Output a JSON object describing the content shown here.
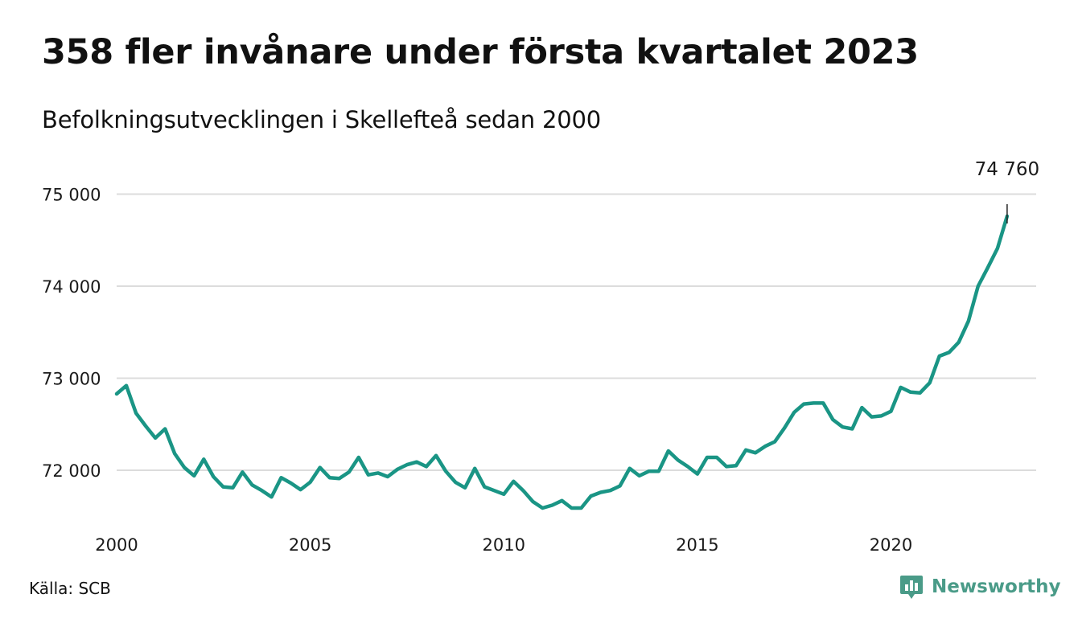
{
  "title": "358 fler invånare under första kvartalet 2023",
  "subtitle": "Befolkningsutvecklingen i Skellefteå sedan 2000",
  "source": "Källa: SCB",
  "brand": {
    "name": "Newsworthy",
    "icon": "newsworthy-bar-chart-logo-icon"
  },
  "colors": {
    "line": "#1a9585",
    "grid": "#dcdcdc",
    "brand": "#4a9b88",
    "text": "#111111"
  },
  "chart_data": {
    "type": "line",
    "title": "358 fler invånare under första kvartalet 2023",
    "subtitle": "Befolkningsutvecklingen i Skellefteå sedan 2000",
    "xlabel": "",
    "ylabel": "",
    "xlim": [
      2000,
      2023.75
    ],
    "ylim": [
      71450,
      75100
    ],
    "x_ticks": [
      2000,
      2005,
      2010,
      2015,
      2020
    ],
    "x_tick_labels": [
      "2000",
      "2005",
      "2010",
      "2015",
      "2020"
    ],
    "y_ticks": [
      72000,
      73000,
      74000,
      75000
    ],
    "y_tick_labels": [
      "72 000",
      "73 000",
      "74 000",
      "75 000"
    ],
    "grid": "horizontal",
    "legend": "none",
    "end_label": "74 760",
    "series": [
      {
        "x": [
          2000.0,
          2000.25,
          2000.5,
          2000.75,
          2001.0,
          2001.25,
          2001.5,
          2001.75,
          2002.0,
          2002.25,
          2002.5,
          2002.75,
          2003.0,
          2003.25,
          2003.5,
          2003.75,
          2004.0,
          2004.25,
          2004.5,
          2004.75,
          2005.0,
          2005.25,
          2005.5,
          2005.75,
          2006.0,
          2006.25,
          2006.5,
          2006.75,
          2007.0,
          2007.25,
          2007.5,
          2007.75,
          2008.0,
          2008.25,
          2008.5,
          2008.75,
          2009.0,
          2009.25,
          2009.5,
          2009.75,
          2010.0,
          2010.25,
          2010.5,
          2010.75,
          2011.0,
          2011.25,
          2011.5,
          2011.75,
          2012.0,
          2012.25,
          2012.5,
          2012.75,
          2013.0,
          2013.25,
          2013.5,
          2013.75,
          2014.0,
          2014.25,
          2014.5,
          2014.75,
          2015.0,
          2015.25,
          2015.5,
          2015.75,
          2016.0,
          2016.25,
          2016.5,
          2016.75,
          2017.0,
          2017.25,
          2017.5,
          2017.75,
          2018.0,
          2018.25,
          2018.5,
          2018.75,
          2019.0,
          2019.25,
          2019.5,
          2019.75,
          2020.0,
          2020.25,
          2020.5,
          2020.75,
          2021.0,
          2021.25,
          2021.5,
          2021.75,
          2022.0,
          2022.25,
          2022.5,
          2022.75,
          2023.0
        ],
        "y": [
          72830,
          72920,
          72620,
          72480,
          72350,
          72450,
          72180,
          72030,
          71940,
          72120,
          71930,
          71820,
          71810,
          71980,
          71840,
          71780,
          71710,
          71920,
          71860,
          71790,
          71870,
          72030,
          71920,
          71910,
          71980,
          72140,
          71950,
          71970,
          71930,
          72010,
          72060,
          72090,
          72040,
          72160,
          71990,
          71870,
          71810,
          72020,
          71820,
          71780,
          71740,
          71880,
          71780,
          71660,
          71590,
          71620,
          71670,
          71590,
          71590,
          71720,
          71760,
          71780,
          71830,
          72020,
          71940,
          71990,
          71990,
          72210,
          72110,
          72040,
          71960,
          72140,
          72140,
          72040,
          72050,
          72220,
          72190,
          72260,
          72310,
          72460,
          72630,
          72720,
          72730,
          72730,
          72550,
          72470,
          72450,
          72680,
          72580,
          72590,
          72640,
          72900,
          72850,
          72840,
          72950,
          73240,
          73280,
          73390,
          73620,
          74000,
          74200,
          74410,
          74760
        ]
      }
    ]
  }
}
